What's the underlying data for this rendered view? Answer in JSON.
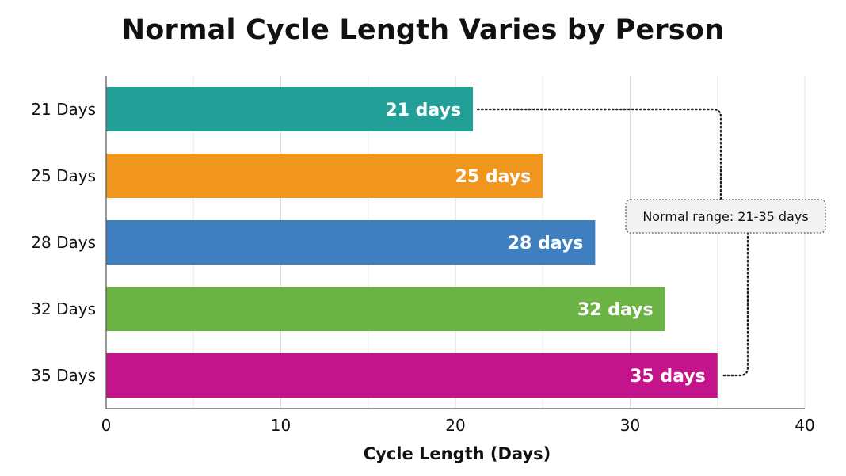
{
  "chart_data": {
    "type": "bar",
    "orientation": "horizontal",
    "title": "Normal Cycle Length Varies by Person",
    "xlabel": "Cycle Length (Days)",
    "ylabel": "",
    "categories": [
      "21 Days",
      "25 Days",
      "28 Days",
      "32 Days",
      "35 Days"
    ],
    "values": [
      21,
      25,
      28,
      32,
      35
    ],
    "data_labels": [
      "21 days",
      "25 days",
      "28 days",
      "32 days",
      "35 days"
    ],
    "colors": [
      "#22A097",
      "#F0961F",
      "#3F7FBF",
      "#6AB344",
      "#C4148C"
    ],
    "xlim": [
      0,
      40
    ],
    "xticks": [
      0,
      10,
      20,
      30,
      40
    ],
    "grid": true,
    "annotation": {
      "text": "Normal range: 21-35 days",
      "spans": [
        21,
        35
      ]
    }
  }
}
